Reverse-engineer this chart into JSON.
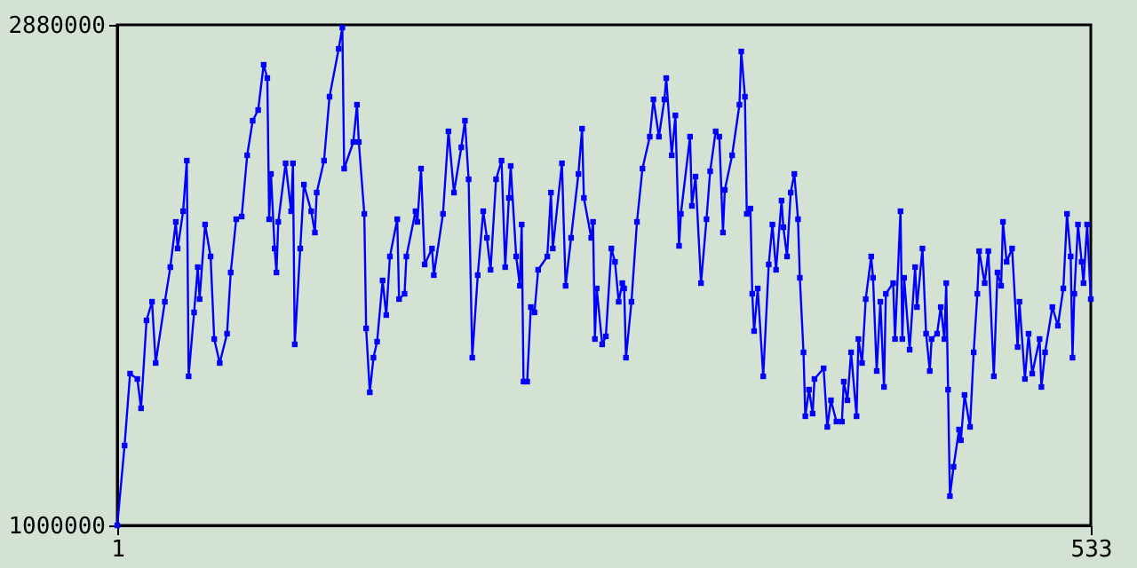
{
  "chart_data": {
    "type": "line",
    "marker": "square",
    "line_style": "solid",
    "grid": false,
    "xlim": [
      1,
      533
    ],
    "xticks": [
      1,
      533
    ],
    "ylim": [
      1000000,
      2880000
    ],
    "yticks": [
      1000000,
      2880000
    ],
    "series": [
      {
        "color": "#0000ff",
        "x": [
          1,
          5,
          8,
          12,
          14,
          17,
          20,
          22,
          27,
          30,
          33,
          34,
          37,
          39,
          40,
          43,
          45,
          46,
          49,
          52,
          54,
          57,
          61,
          63,
          66,
          69,
          72,
          75,
          78,
          81,
          83,
          84,
          85,
          87,
          88,
          89,
          93,
          96,
          97,
          98,
          101,
          103,
          107,
          109,
          110,
          114,
          117,
          122,
          124,
          125,
          130,
          132,
          133,
          136,
          137,
          139,
          141,
          143,
          146,
          148,
          150,
          154,
          155,
          158,
          159,
          164,
          165,
          167,
          169,
          173,
          174,
          179,
          182,
          185,
          189,
          191,
          193,
          195,
          198,
          201,
          203,
          205,
          208,
          211,
          213,
          215,
          216,
          219,
          221,
          222,
          223,
          225,
          227,
          229,
          231,
          236,
          238,
          239,
          244,
          246,
          249,
          253,
          255,
          256,
          260,
          261,
          262,
          263,
          266,
          268,
          271,
          273,
          275,
          277,
          278,
          279,
          282,
          285,
          288,
          292,
          294,
          297,
          300,
          301,
          304,
          306,
          308,
          309,
          314,
          315,
          317,
          320,
          323,
          325,
          328,
          330,
          332,
          333,
          337,
          341,
          342,
          344,
          345,
          347,
          348,
          349,
          351,
          354,
          357,
          359,
          361,
          364,
          365,
          367,
          369,
          371,
          373,
          374,
          376,
          377,
          379,
          381,
          382,
          387,
          389,
          391,
          394,
          397,
          398,
          400,
          402,
          405,
          406,
          408,
          410,
          413,
          414,
          416,
          418,
          420,
          421,
          425,
          426,
          429,
          430,
          431,
          434,
          437,
          438,
          441,
          443,
          445,
          446,
          449,
          451,
          453,
          454,
          455,
          456,
          458,
          461,
          462,
          464,
          467,
          469,
          471,
          472,
          475,
          477,
          480,
          482,
          484,
          485,
          487,
          490,
          493,
          494,
          497,
          499,
          501,
          505,
          506,
          508,
          512,
          515,
          518,
          520,
          522,
          523,
          524,
          526,
          528,
          529,
          531,
          533
        ],
        "values": [
          1000000,
          1300000,
          1570000,
          1550000,
          1440000,
          1770000,
          1840000,
          1610000,
          1840000,
          1970000,
          2140000,
          2040000,
          2180000,
          2370000,
          1560000,
          1800000,
          1970000,
          1850000,
          2130000,
          2010000,
          1700000,
          1610000,
          1720000,
          1950000,
          2150000,
          2160000,
          2390000,
          2520000,
          2560000,
          2730000,
          2680000,
          2150000,
          2320000,
          2040000,
          1950000,
          2140000,
          2360000,
          2180000,
          2360000,
          1680000,
          2040000,
          2280000,
          2180000,
          2100000,
          2250000,
          2370000,
          2610000,
          2790000,
          2870000,
          2340000,
          2440000,
          2580000,
          2440000,
          2170000,
          1740000,
          1500000,
          1630000,
          1690000,
          1920000,
          1790000,
          2010000,
          2150000,
          1850000,
          1870000,
          2010000,
          2180000,
          2140000,
          2340000,
          1980000,
          2040000,
          1940000,
          2170000,
          2480000,
          2250000,
          2420000,
          2520000,
          2300000,
          1630000,
          1940000,
          2180000,
          2080000,
          1960000,
          2300000,
          2370000,
          1970000,
          2230000,
          2350000,
          2010000,
          1900000,
          2130000,
          1540000,
          1540000,
          1820000,
          1800000,
          1960000,
          2010000,
          2250000,
          2040000,
          2360000,
          1900000,
          2080000,
          2320000,
          2490000,
          2230000,
          2080000,
          2140000,
          1700000,
          1890000,
          1680000,
          1710000,
          2040000,
          1990000,
          1840000,
          1910000,
          1890000,
          1630000,
          1840000,
          2140000,
          2340000,
          2460000,
          2600000,
          2460000,
          2600000,
          2680000,
          2390000,
          2540000,
          2050000,
          2170000,
          2460000,
          2200000,
          2310000,
          1910000,
          2150000,
          2330000,
          2480000,
          2460000,
          2100000,
          2260000,
          2390000,
          2580000,
          2780000,
          2610000,
          2170000,
          2190000,
          1870000,
          1730000,
          1890000,
          1560000,
          1980000,
          2130000,
          1960000,
          2220000,
          2120000,
          2010000,
          2250000,
          2320000,
          2150000,
          1930000,
          1650000,
          1410000,
          1510000,
          1420000,
          1550000,
          1590000,
          1370000,
          1470000,
          1390000,
          1390000,
          1540000,
          1470000,
          1650000,
          1410000,
          1700000,
          1610000,
          1850000,
          2010000,
          1930000,
          1580000,
          1840000,
          1520000,
          1870000,
          1910000,
          1700000,
          2180000,
          1700000,
          1930000,
          1660000,
          1970000,
          1820000,
          2040000,
          1720000,
          1580000,
          1700000,
          1720000,
          1820000,
          1700000,
          1910000,
          1510000,
          1110000,
          1220000,
          1360000,
          1320000,
          1490000,
          1370000,
          1650000,
          1870000,
          2030000,
          1910000,
          2030000,
          1560000,
          1950000,
          1900000,
          2140000,
          1990000,
          2040000,
          1670000,
          1840000,
          1550000,
          1720000,
          1570000,
          1700000,
          1520000,
          1650000,
          1820000,
          1750000,
          1890000,
          2170000,
          2010000,
          1630000,
          1870000,
          2130000,
          1990000,
          1910000,
          2130000,
          1850000
        ]
      }
    ]
  }
}
